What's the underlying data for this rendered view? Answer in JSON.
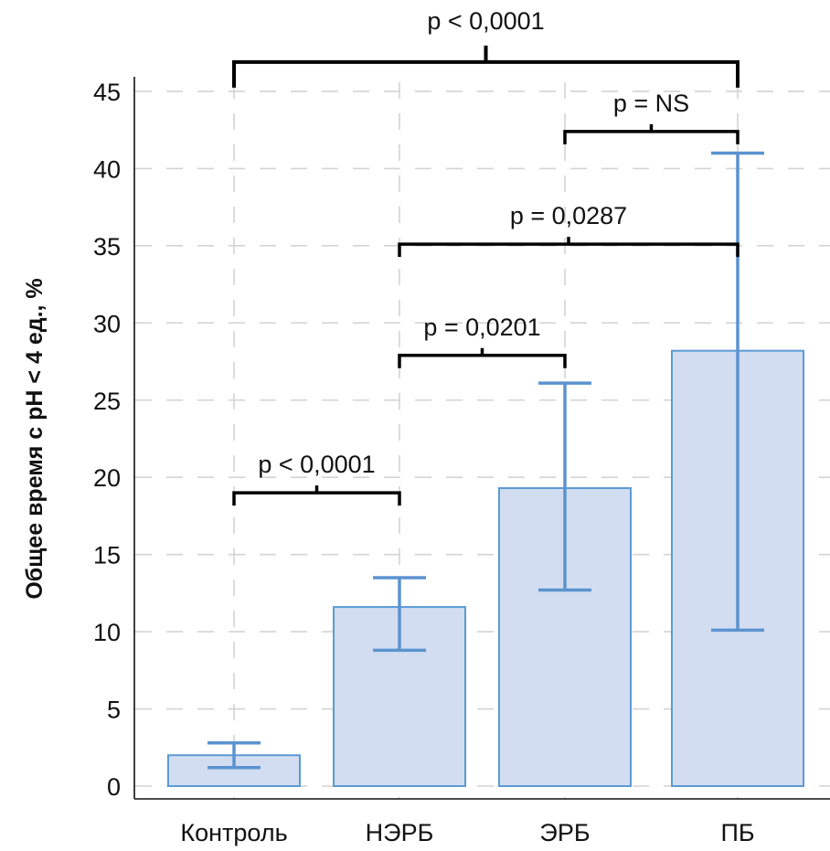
{
  "chart_data": {
    "type": "bar",
    "title": "",
    "xlabel": "",
    "ylabel": "Общее время с pH < 4 ед., %",
    "ylim": [
      0,
      46
    ],
    "yticks": [
      0,
      5,
      10,
      15,
      20,
      25,
      30,
      35,
      40,
      45
    ],
    "grid": true,
    "categories": [
      "Контроль",
      "НЭРБ",
      "ЭРБ",
      "ПБ"
    ],
    "values": [
      2.0,
      11.6,
      19.3,
      28.2
    ],
    "error_low": [
      1.2,
      8.8,
      12.7,
      10.1
    ],
    "error_high": [
      2.8,
      13.5,
      26.1,
      41.0
    ],
    "colors": {
      "bar_fill": "#d3ddf1",
      "bar_edge": "#5b9bd5",
      "errorbar": "#5b93d0",
      "bracket": "#000000",
      "grid": "#d3d3d3"
    },
    "annotations": [
      {
        "from": "Контроль",
        "to": "НЭРБ",
        "text": "p < 0,0001",
        "y": 19
      },
      {
        "from": "НЭРБ",
        "to": "ЭРБ",
        "text": "p = 0,0201",
        "y": 27.9
      },
      {
        "from": "НЭРБ",
        "to": "ПБ",
        "text": "p = 0,0287",
        "y": 35.1
      },
      {
        "from": "ЭРБ",
        "to": "ПБ",
        "text": "p = NS",
        "y": 42.4
      },
      {
        "from": "Контроль",
        "to": "ПБ",
        "text": "p < 0,0001",
        "y": 46.9
      }
    ]
  }
}
